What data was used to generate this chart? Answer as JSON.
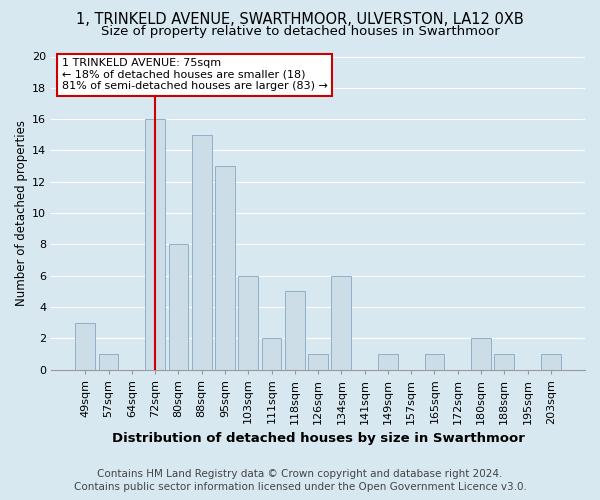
{
  "title": "1, TRINKELD AVENUE, SWARTHMOOR, ULVERSTON, LA12 0XB",
  "subtitle": "Size of property relative to detached houses in Swarthmoor",
  "xlabel": "Distribution of detached houses by size in Swarthmoor",
  "ylabel": "Number of detached properties",
  "categories": [
    "49sqm",
    "57sqm",
    "64sqm",
    "72sqm",
    "80sqm",
    "88sqm",
    "95sqm",
    "103sqm",
    "111sqm",
    "118sqm",
    "126sqm",
    "134sqm",
    "141sqm",
    "149sqm",
    "157sqm",
    "165sqm",
    "172sqm",
    "180sqm",
    "188sqm",
    "195sqm",
    "203sqm"
  ],
  "values": [
    3,
    1,
    0,
    16,
    8,
    15,
    13,
    6,
    2,
    5,
    1,
    6,
    0,
    1,
    0,
    1,
    0,
    2,
    1,
    0,
    1
  ],
  "bar_color": "#ccdde8",
  "bar_edge_color": "#90b0c8",
  "ref_line_x": 3.0,
  "ref_line_color": "#cc0000",
  "annotation_title": "1 TRINKELD AVENUE: 75sqm",
  "annotation_line1": "← 18% of detached houses are smaller (18)",
  "annotation_line2": "81% of semi-detached houses are larger (83) →",
  "annotation_box_facecolor": "#ffffff",
  "annotation_box_edgecolor": "#cc0000",
  "ylim": [
    0,
    20
  ],
  "yticks": [
    0,
    2,
    4,
    6,
    8,
    10,
    12,
    14,
    16,
    18,
    20
  ],
  "footer_line1": "Contains HM Land Registry data © Crown copyright and database right 2024.",
  "footer_line2": "Contains public sector information licensed under the Open Government Licence v3.0.",
  "background_color": "#d8e8f0",
  "plot_bg_color": "#d8e8f0",
  "grid_color": "#ffffff",
  "title_fontsize": 10.5,
  "subtitle_fontsize": 9.5,
  "xlabel_fontsize": 9.5,
  "ylabel_fontsize": 8.5,
  "tick_fontsize": 8,
  "annotation_fontsize": 8,
  "footer_fontsize": 7.5
}
